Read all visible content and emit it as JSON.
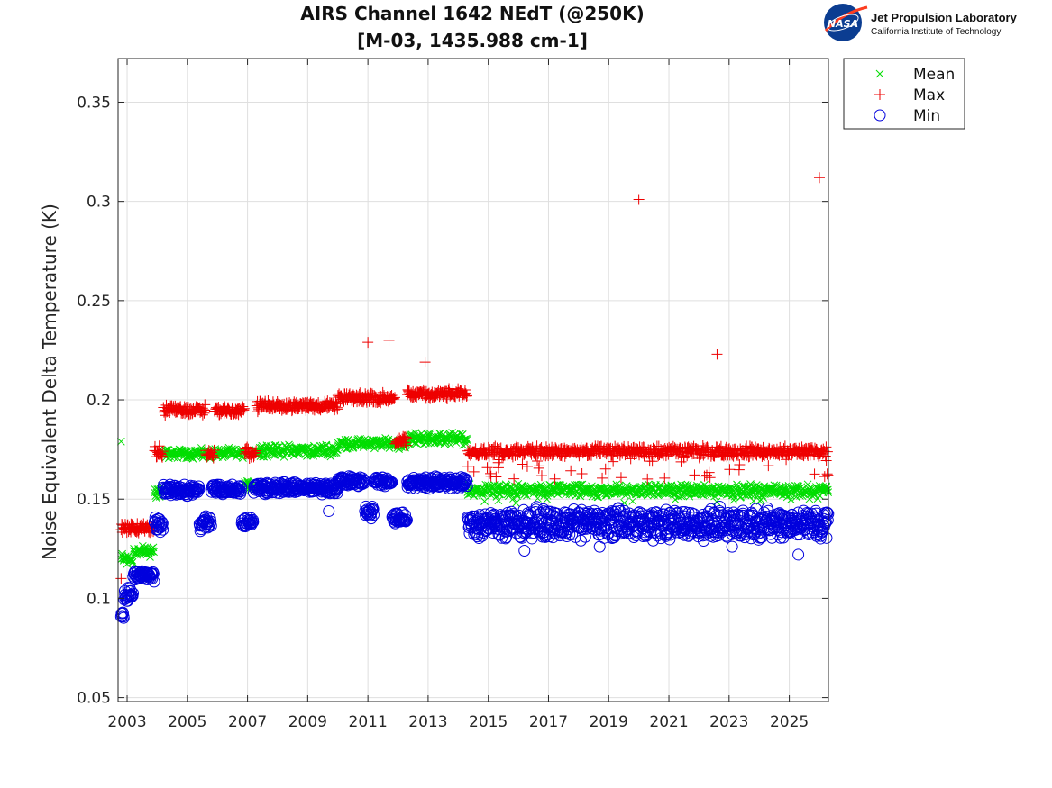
{
  "chart_data": {
    "type": "scatter",
    "title_line1": "AIRS Channel 1642 NEdT (@250K)",
    "title_line2": "[M-03, 1435.988 cm-1]",
    "xlabel": "",
    "ylabel": "Noise Equivalent Delta Temperature (K)",
    "xlim": [
      2002.7,
      2026.3
    ],
    "ylim": [
      0.048,
      0.372
    ],
    "xticks": [
      2003,
      2005,
      2007,
      2009,
      2011,
      2013,
      2015,
      2017,
      2019,
      2021,
      2023,
      2025
    ],
    "xtick_labels": [
      "2003",
      "2005",
      "2007",
      "2009",
      "2011",
      "2013",
      "2015",
      "2017",
      "2019",
      "2021",
      "2023",
      "2025"
    ],
    "yticks": [
      0.05,
      0.1,
      0.15,
      0.2,
      0.25,
      0.3,
      0.35
    ],
    "ytick_labels": [
      "0.05",
      "0.1",
      "0.15",
      "0.2",
      "0.25",
      "0.3",
      "0.35"
    ],
    "grid": true,
    "legend_position": "outside-top-right",
    "series": [
      {
        "name": "Mean",
        "marker": "x",
        "color": "#00dd00",
        "segments": [
          {
            "x": [
              2002.8,
              2003.2
            ],
            "y": [
              0.118,
              0.122
            ]
          },
          {
            "x": [
              2003.2,
              2003.9
            ],
            "y": [
              0.122,
              0.125
            ]
          },
          {
            "x": [
              2003.9,
              2004.2
            ],
            "y": [
              0.152,
              0.156
            ]
          },
          {
            "x": [
              2004.2,
              2006.9
            ],
            "y": [
              0.172,
              0.174
            ]
          },
          {
            "x": [
              2006.9,
              2007.2
            ],
            "y": [
              0.155,
              0.158
            ]
          },
          {
            "x": [
              2007.2,
              2010.0
            ],
            "y": [
              0.173,
              0.176
            ]
          },
          {
            "x": [
              2010.0,
              2012.3
            ],
            "y": [
              0.177,
              0.179
            ]
          },
          {
            "x": [
              2012.3,
              2014.3
            ],
            "y": [
              0.179,
              0.182
            ]
          },
          {
            "x": [
              2014.3,
              2026.3
            ],
            "y": [
              0.153,
              0.156
            ]
          }
        ],
        "outliers": [
          {
            "x": 2002.8,
            "y": 0.179
          }
        ]
      },
      {
        "name": "Max",
        "marker": "+",
        "color": "#ee0000",
        "segments": [
          {
            "x": [
              2002.8,
              2003.9
            ],
            "y": [
              0.134,
              0.137
            ]
          },
          {
            "x": [
              2003.9,
              2004.2
            ],
            "y": [
              0.172,
              0.175
            ]
          },
          {
            "x": [
              2004.2,
              2005.6
            ],
            "y": [
              0.194,
              0.196
            ]
          },
          {
            "x": [
              2005.6,
              2005.9
            ],
            "y": [
              0.172,
              0.174
            ]
          },
          {
            "x": [
              2005.9,
              2006.9
            ],
            "y": [
              0.194,
              0.195
            ]
          },
          {
            "x": [
              2006.9,
              2007.3
            ],
            "y": [
              0.172,
              0.175
            ]
          },
          {
            "x": [
              2007.3,
              2010.0
            ],
            "y": [
              0.196,
              0.198
            ]
          },
          {
            "x": [
              2010.0,
              2011.9
            ],
            "y": [
              0.2,
              0.202
            ]
          },
          {
            "x": [
              2011.9,
              2012.3
            ],
            "y": [
              0.178,
              0.18
            ]
          },
          {
            "x": [
              2012.3,
              2014.3
            ],
            "y": [
              0.202,
              0.204
            ]
          },
          {
            "x": [
              2014.3,
              2026.3
            ],
            "y": [
              0.173,
              0.175
            ]
          }
        ],
        "outliers": [
          {
            "x": 2002.8,
            "y": 0.11
          },
          {
            "x": 2011.0,
            "y": 0.229
          },
          {
            "x": 2011.7,
            "y": 0.23
          },
          {
            "x": 2012.9,
            "y": 0.219
          },
          {
            "x": 2020.0,
            "y": 0.301
          },
          {
            "x": 2022.6,
            "y": 0.223
          },
          {
            "x": 2026.0,
            "y": 0.312
          }
        ]
      },
      {
        "name": "Min",
        "marker": "o",
        "color": "#0000dd",
        "segments": [
          {
            "x": [
              2002.8,
              2002.9
            ],
            "y": [
              0.091,
              0.093
            ]
          },
          {
            "x": [
              2002.9,
              2003.2
            ],
            "y": [
              0.099,
              0.104
            ]
          },
          {
            "x": [
              2003.2,
              2003.9
            ],
            "y": [
              0.11,
              0.113
            ]
          },
          {
            "x": [
              2003.9,
              2004.2
            ],
            "y": [
              0.134,
              0.14
            ]
          },
          {
            "x": [
              2004.2,
              2005.4
            ],
            "y": [
              0.153,
              0.156
            ]
          },
          {
            "x": [
              2005.4,
              2005.8
            ],
            "y": [
              0.135,
              0.14
            ]
          },
          {
            "x": [
              2005.8,
              2006.8
            ],
            "y": [
              0.154,
              0.156
            ]
          },
          {
            "x": [
              2006.8,
              2007.2
            ],
            "y": [
              0.137,
              0.14
            ]
          },
          {
            "x": [
              2007.2,
              2010.0
            ],
            "y": [
              0.154,
              0.157
            ]
          },
          {
            "x": [
              2010.0,
              2010.9
            ],
            "y": [
              0.158,
              0.16
            ]
          },
          {
            "x": [
              2010.9,
              2011.2
            ],
            "y": [
              0.141,
              0.145
            ]
          },
          {
            "x": [
              2011.2,
              2011.8
            ],
            "y": [
              0.158,
              0.16
            ]
          },
          {
            "x": [
              2011.8,
              2012.3
            ],
            "y": [
              0.139,
              0.142
            ]
          },
          {
            "x": [
              2012.3,
              2014.3
            ],
            "y": [
              0.157,
              0.16
            ]
          },
          {
            "x": [
              2014.3,
              2026.3
            ],
            "y": [
              0.136,
              0.139
            ]
          }
        ],
        "outliers": [
          {
            "x": 2009.7,
            "y": 0.144
          },
          {
            "x": 2016.2,
            "y": 0.124
          },
          {
            "x": 2018.7,
            "y": 0.126
          },
          {
            "x": 2023.1,
            "y": 0.126
          },
          {
            "x": 2025.3,
            "y": 0.122
          }
        ]
      }
    ]
  },
  "logo": {
    "badge_text": "NASA",
    "org_name": "Jet Propulsion Laboratory",
    "org_sub": "California Institute of Technology"
  },
  "colors": {
    "mean": "#00dd00",
    "max": "#ee0000",
    "min": "#0000dd",
    "grid": "#dfdfdf",
    "axis": "#262626",
    "nasa_blue": "#0b3d91",
    "nasa_red": "#fc3d21"
  }
}
